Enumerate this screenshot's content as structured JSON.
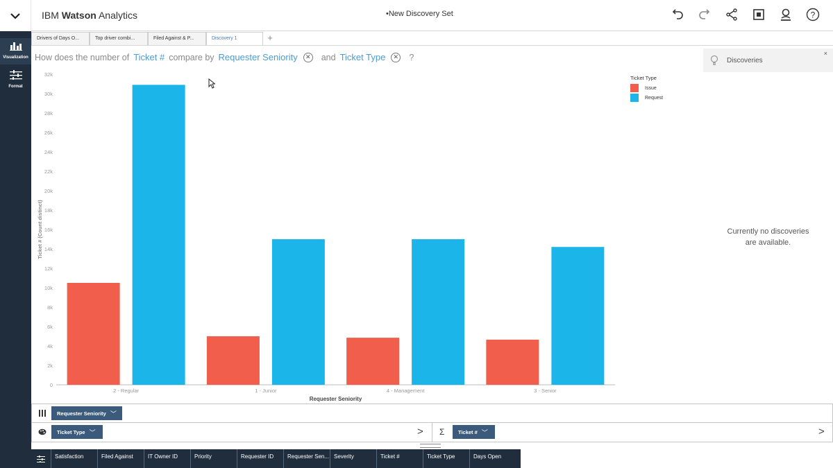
{
  "app": {
    "brand_prefix": "IBM",
    "brand_name": "Watson",
    "brand_suffix": "Analytics",
    "set_title": "New Discovery Set"
  },
  "toolbar": {
    "icons": [
      "undo-icon",
      "redo-icon",
      "share-icon",
      "screenshot-icon",
      "user-icon",
      "help-icon"
    ],
    "help_label": "?"
  },
  "rail": {
    "visualization_label": "Visualization",
    "format_label": "Format"
  },
  "tabs": [
    {
      "label": "Drivers of Days O...",
      "active": false
    },
    {
      "label": "Top driver combi...",
      "active": false
    },
    {
      "label": "Filed Against & P...",
      "active": false
    },
    {
      "label": "Discovery 1",
      "active": true
    }
  ],
  "tab_add": "+",
  "question": {
    "p1": "How does the number of",
    "measure": "Ticket #",
    "p2": "compare by",
    "dim1": "Requester Seniority",
    "p3": "and",
    "dim2": "Ticket Type",
    "p4": "?"
  },
  "discoveries": {
    "title": "Discoveries",
    "close": "×",
    "empty_line1": "Currently no discoveries",
    "empty_line2": "are available."
  },
  "colors": {
    "issue": "#f15f4c",
    "request": "#1cb5ea",
    "rail": "#1f2d3d",
    "pill": "#3b5a7c",
    "token": "#4b9bd1"
  },
  "chart_data": {
    "type": "bar",
    "xlabel": "Requester Seniority",
    "ylabel": "Ticket # (Count distinct)",
    "legend_title": "Ticket Type",
    "legend_position": "top-right",
    "categories": [
      "2 - Regular",
      "1 - Junior",
      "4 - Management",
      "3 - Senior"
    ],
    "series": [
      {
        "name": "Issue",
        "color": "#f15f4c",
        "values": [
          10500,
          5000,
          4850,
          4650
        ]
      },
      {
        "name": "Request",
        "color": "#1cb5ea",
        "values": [
          30900,
          15000,
          15000,
          14200
        ]
      }
    ],
    "ylim": [
      0,
      32000
    ],
    "yticks": [
      "0",
      "2k",
      "4k",
      "6k",
      "8k",
      "10k",
      "12k",
      "14k",
      "16k",
      "18k",
      "20k",
      "22k",
      "24k",
      "26k",
      "28k",
      "30k",
      "32k"
    ],
    "grid": false
  },
  "shelves": {
    "columns_pill": "Requester Seniority",
    "color_pill": "Ticket Type",
    "size_pill": "Ticket #",
    "sigma": "Σ",
    "arrow": ">"
  },
  "fields": [
    "Satisfaction",
    "Filed Against",
    "IT Owner ID",
    "Priority",
    "Requester ID",
    "Requester Sen...",
    "Severity",
    "Ticket #",
    "Ticket Type",
    "Days Open"
  ]
}
